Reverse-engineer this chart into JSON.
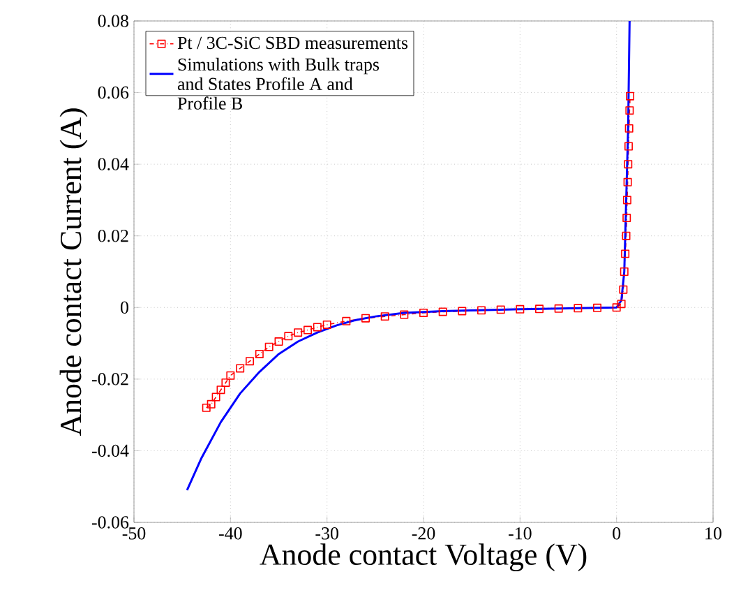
{
  "chart_data": {
    "type": "line",
    "xlabel": "Anode contact Voltage (V)",
    "ylabel": "Anode contact Current (A)",
    "xlim": [
      -50,
      10
    ],
    "xticks": [
      -50,
      -40,
      -30,
      -20,
      -10,
      0,
      10
    ],
    "ylim": [
      -0.06,
      0.08
    ],
    "yticks": [
      -0.06,
      -0.04,
      -0.02,
      0,
      0.02,
      0.04,
      0.06,
      0.08
    ],
    "grid": true,
    "legend": "top left",
    "series": [
      {
        "name": "Pt / 3C-SiC SBD measurements",
        "color": "#ff0000",
        "marker": "square",
        "line_style": "dashed",
        "x": [
          -42.5,
          -42,
          -41.5,
          -41,
          -40.5,
          -40,
          -39,
          -38,
          -37,
          -36,
          -35,
          -34,
          -33,
          -32,
          -31,
          -30,
          -28,
          -26,
          -24,
          -22,
          -20,
          -18,
          -16,
          -14,
          -12,
          -10,
          -8,
          -6,
          -4,
          -2,
          0,
          0.5,
          0.7,
          0.8,
          0.9,
          1.0,
          1.05,
          1.1,
          1.15,
          1.2,
          1.25,
          1.3,
          1.35,
          1.4
        ],
        "values": [
          -0.028,
          -0.027,
          -0.025,
          -0.023,
          -0.021,
          -0.019,
          -0.017,
          -0.015,
          -0.013,
          -0.011,
          -0.0095,
          -0.008,
          -0.007,
          -0.0063,
          -0.0055,
          -0.0048,
          -0.0038,
          -0.003,
          -0.0025,
          -0.002,
          -0.0015,
          -0.0012,
          -0.001,
          -0.0008,
          -0.0006,
          -0.0005,
          -0.0004,
          -0.0003,
          -0.0002,
          -0.0001,
          0,
          0.001,
          0.005,
          0.01,
          0.015,
          0.02,
          0.025,
          0.03,
          0.035,
          0.04,
          0.045,
          0.05,
          0.055,
          0.059
        ]
      },
      {
        "name": "Simulations with Bulk traps and States Profile A and Profile B",
        "color": "#0000ff",
        "marker": "none",
        "line_style": "solid",
        "x": [
          -44.5,
          -43,
          -41,
          -39,
          -37,
          -35,
          -33,
          -31,
          -29,
          -27,
          -25,
          -22,
          -18,
          -10,
          0,
          0.5,
          0.8,
          1.0,
          1.2,
          1.35
        ],
        "values": [
          -0.051,
          -0.042,
          -0.032,
          -0.024,
          -0.018,
          -0.013,
          -0.0095,
          -0.007,
          -0.005,
          -0.0035,
          -0.0025,
          -0.0015,
          -0.001,
          -0.0005,
          0,
          0.002,
          0.01,
          0.03,
          0.05,
          0.08
        ]
      }
    ]
  }
}
